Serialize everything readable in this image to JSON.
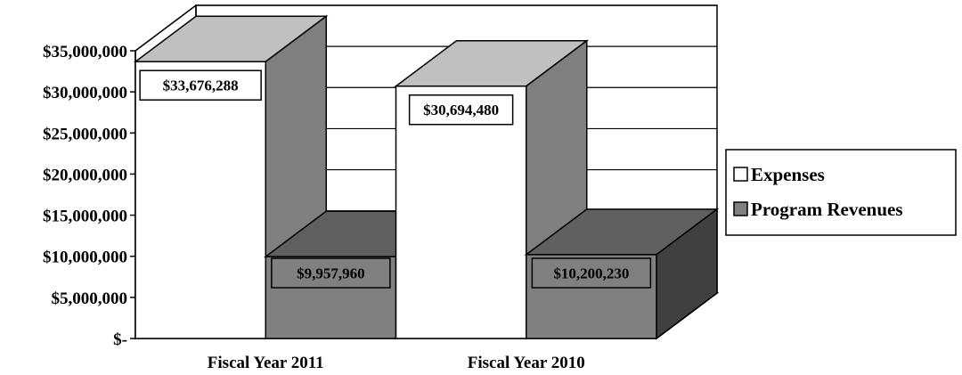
{
  "chart_data": {
    "type": "bar",
    "title": "",
    "categories": [
      "Fiscal Year 2011",
      "Fiscal Year 2010"
    ],
    "series": [
      {
        "name": "Expenses",
        "values": [
          33676288,
          30694480
        ],
        "labels": [
          "$33,676,288",
          "$30,694,480"
        ],
        "color": "#ffffff",
        "top_color": "#c0c0c0",
        "side_color": "#808080"
      },
      {
        "name": "Program Revenues",
        "values": [
          9957960,
          10200230
        ],
        "labels": [
          "$9,957,960",
          "$10,200,230"
        ],
        "color": "#808080",
        "top_color": "#606060",
        "side_color": "#404040"
      }
    ],
    "ylim": [
      0,
      35000000
    ],
    "y_ticks": [
      {
        "value": 0,
        "label": "$-"
      },
      {
        "value": 5000000,
        "label": "$5,000,000"
      },
      {
        "value": 10000000,
        "label": "$10,000,000"
      },
      {
        "value": 15000000,
        "label": "$15,000,000"
      },
      {
        "value": 20000000,
        "label": "$20,000,000"
      },
      {
        "value": 25000000,
        "label": "$25,000,000"
      },
      {
        "value": 30000000,
        "label": "$30,000,000"
      },
      {
        "value": 35000000,
        "label": "$35,000,000"
      }
    ],
    "grid": true,
    "legend_position": "right",
    "style": "3d-clustered-bar"
  }
}
